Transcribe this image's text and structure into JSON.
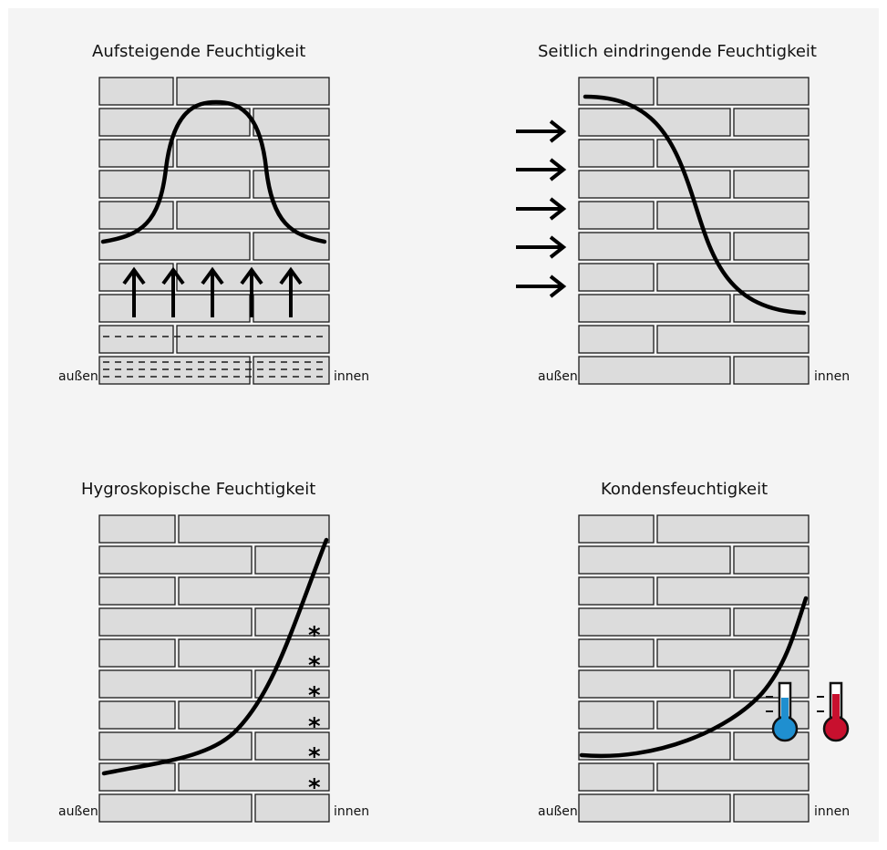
{
  "panels": {
    "rising": {
      "title": "Aufsteigende Feuchtigkeit",
      "outside": "außen",
      "inside": "innen"
    },
    "lateral": {
      "title": "Seitlich eindringende Feuchtigkeit",
      "outside": "außen",
      "inside": "innen"
    },
    "hygro": {
      "title": "Hygroskopische Feuchtigkeit",
      "outside": "außen",
      "inside": "innen"
    },
    "condensation": {
      "title": "Kondensfeuchtigkeit",
      "outside": "außen",
      "inside": "innen"
    }
  },
  "colors": {
    "background": "#f4f4f4",
    "brick_fill": "#dcdcdc",
    "brick_stroke": "#1a1a1a",
    "cold_thermometer": "#1f8fd0",
    "warm_thermometer": "#c8102e"
  },
  "icons": {
    "arrows_up": "arrow-up-icon",
    "arrows_right": "arrow-right-icon",
    "salt_crystals": "asterisk-icon",
    "cold": "thermometer-cold-icon",
    "warm": "thermometer-warm-icon"
  }
}
